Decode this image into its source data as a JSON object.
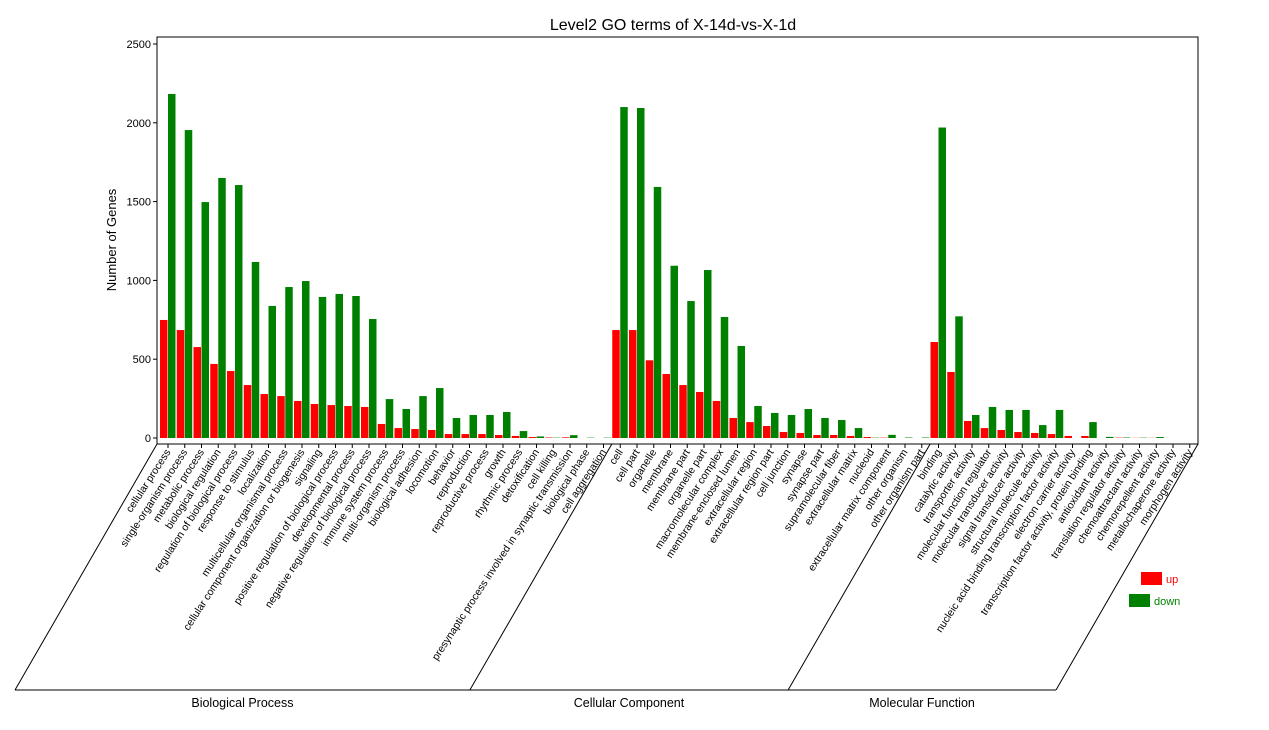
{
  "chart_data": {
    "type": "bar",
    "title": "Level2 GO terms of X-14d-vs-X-1d",
    "xlabel": "",
    "ylabel": "Number of Genes",
    "ylim": [
      0,
      2500
    ],
    "yticks": [
      0,
      500,
      1000,
      1500,
      2000,
      2500
    ],
    "grid": false,
    "legend_position": "bottom-right",
    "colors": {
      "up": "#ff0000",
      "down": "#008000"
    },
    "groups": [
      {
        "name": "Biological Process",
        "count": 27
      },
      {
        "name": "Cellular Component",
        "count": 19
      },
      {
        "name": "Molecular Function",
        "count": 16
      }
    ],
    "categories": [
      "cellular process",
      "single-organism process",
      "metabolic process",
      "biological regulation",
      "regulation of biological process",
      "response to stimulus",
      "localization",
      "multicellular organismal process",
      "cellular component organization or biogenesis",
      "signaling",
      "positive regulation of biological process",
      "developmental process",
      "negative regulation of biological process",
      "immune system process",
      "multi-organism process",
      "biological adhesion",
      "locomotion",
      "behavior",
      "reproduction",
      "reproductive process",
      "growth",
      "rhythmic process",
      "detoxification",
      "cell killing",
      "presynaptic process involved in synaptic transmission",
      "biological phase",
      "cell aggregation",
      "cell",
      "cell part",
      "organelle",
      "membrane",
      "membrane part",
      "organelle part",
      "macromolecular complex",
      "membrane-enclosed lumen",
      "extracellular region",
      "extracellular region part",
      "cell junction",
      "synapse",
      "synapse part",
      "supramolecular fiber",
      "extracellular matrix",
      "nucleoid",
      "extracellular matrix component",
      "other organism",
      "other organism part",
      "binding",
      "catalytic activity",
      "transporter activity",
      "molecular function regulator",
      "molecular transducer activity",
      "signal transducer activity",
      "structural molecule activity",
      "nucleic acid binding transcription factor activity",
      "electron carrier activity",
      "transcription factor activity, protein binding",
      "antioxidant activity",
      "translation regulator activity",
      "chemoattractant activity",
      "chemorepellent activity",
      "metallochaperone activity",
      "morphogen activity"
    ],
    "series": [
      {
        "name": "up",
        "values": [
          749,
          685,
          577,
          470,
          425,
          336,
          279,
          266,
          235,
          216,
          209,
          203,
          197,
          89,
          63,
          57,
          51,
          25,
          25,
          25,
          19,
          13,
          6,
          3,
          4,
          0,
          0,
          685,
          685,
          493,
          406,
          336,
          292,
          235,
          127,
          101,
          76,
          38,
          32,
          19,
          19,
          13,
          6,
          2,
          0,
          0,
          609,
          419,
          108,
          63,
          51,
          38,
          32,
          25,
          13,
          13,
          0,
          2,
          1,
          1,
          0,
          0
        ]
      },
      {
        "name": "down",
        "values": [
          2183,
          1954,
          1497,
          1650,
          1605,
          1117,
          838,
          958,
          996,
          895,
          914,
          901,
          755,
          247,
          184,
          266,
          317,
          127,
          146,
          146,
          165,
          44,
          10,
          2,
          18,
          2,
          2,
          2100,
          2094,
          1593,
          1093,
          869,
          1066,
          768,
          584,
          203,
          159,
          146,
          184,
          127,
          114,
          63,
          2,
          20,
          3,
          3,
          1970,
          772,
          146,
          197,
          178,
          178,
          82,
          178,
          0,
          101,
          7,
          3,
          2,
          6,
          0,
          0
        ]
      }
    ]
  }
}
